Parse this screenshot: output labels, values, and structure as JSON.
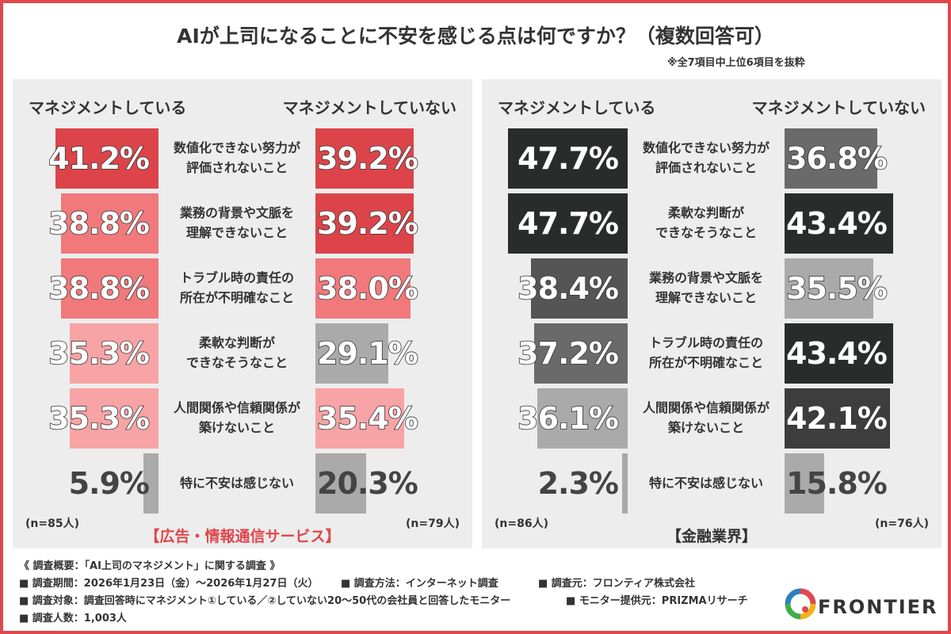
{
  "title": "AIが上司になることに不安を感じる点は何ですか？（複数回答可）",
  "subnote": "※全7項目中上位6項目を抜粋",
  "header_left": "マネジメントしている",
  "header_right": "マネジメントしていない",
  "chart_data": [
    {
      "type": "bar",
      "category": "【広告・情報通信サービス】",
      "n_managing": "(n=85人)",
      "n_not_managing": "(n=79人)",
      "items": [
        {
          "label": [
            "数値化できない努力が",
            "評価されないこと"
          ],
          "managing": 41.2,
          "not_managing": 39.2,
          "managing_color": "#dc4449",
          "not_managing_color": "#dc4449"
        },
        {
          "label": [
            "業務の背景や文脈を",
            "理解できないこと"
          ],
          "managing": 38.8,
          "not_managing": 39.2,
          "managing_color": "#f1797c",
          "not_managing_color": "#dc4449"
        },
        {
          "label": [
            "トラブル時の責任の",
            "所在が不明確なこと"
          ],
          "managing": 38.8,
          "not_managing": 38.0,
          "managing_color": "#f1797c",
          "not_managing_color": "#f1797c"
        },
        {
          "label": [
            "柔軟な判断が",
            "できなそうなこと"
          ],
          "managing": 35.3,
          "not_managing": 29.1,
          "managing_color": "#f8a3a5",
          "not_managing_color": "#aaaaaa"
        },
        {
          "label": [
            "人間関係や信頼関係が",
            "築けないこと"
          ],
          "managing": 35.3,
          "not_managing": 35.4,
          "managing_color": "#f8a3a5",
          "not_managing_color": "#f8a3a5"
        },
        {
          "label": [
            "特に不安は感じない"
          ],
          "managing": 5.9,
          "not_managing": 20.3,
          "managing_color": "#aaaaaa",
          "not_managing_color": "#aaaaaa"
        }
      ],
      "category_color": "#e0474c"
    },
    {
      "type": "bar",
      "category": "【金融業界】",
      "n_managing": "(n=86人)",
      "n_not_managing": "(n=76人)",
      "items": [
        {
          "label": [
            "数値化できない努力が",
            "評価されないこと"
          ],
          "managing": 47.7,
          "not_managing": 36.8,
          "managing_color": "#2a2c2b",
          "not_managing_color": "#6a6a6a"
        },
        {
          "label": [
            "柔軟な判断が",
            "できなそうなこと"
          ],
          "managing": 47.7,
          "not_managing": 43.4,
          "managing_color": "#2a2c2b",
          "not_managing_color": "#2a2c2b"
        },
        {
          "label": [
            "業務の背景や文脈を",
            "理解できないこと"
          ],
          "managing": 38.4,
          "not_managing": 35.5,
          "managing_color": "#555555",
          "not_managing_color": "#aaaaaa"
        },
        {
          "label": [
            "トラブル時の責任の",
            "所在が不明確なこと"
          ],
          "managing": 37.2,
          "not_managing": 43.4,
          "managing_color": "#6a6a6a",
          "not_managing_color": "#2a2c2b"
        },
        {
          "label": [
            "人間関係や信頼関係が",
            "築けないこと"
          ],
          "managing": 36.1,
          "not_managing": 42.1,
          "managing_color": "#aaaaaa",
          "not_managing_color": "#3d3d3d"
        },
        {
          "label": [
            "特に不安は感じない"
          ],
          "managing": 2.3,
          "not_managing": 15.8,
          "managing_color": "#aaaaaa",
          "not_managing_color": "#aaaaaa"
        }
      ],
      "category_color": "#333333"
    }
  ],
  "notes": [
    "《 調査概要：「AI上司のマネジメント」に関する調査 》",
    "■ 調査期間：2026年1月23日（金）～2026年1月27日（火）",
    "■ 調査方法：インターネット調査",
    "■ 調査元：フロンティア株式会社",
    "■ 調査対象：調査回答時にマネジメント①している／②していない20～50代の会社員と回答したモニター",
    "■ モニター提供元：PRIZMAリサーチ",
    "■ 調査人数：1,003人"
  ],
  "logo_text": "FRONTIER"
}
